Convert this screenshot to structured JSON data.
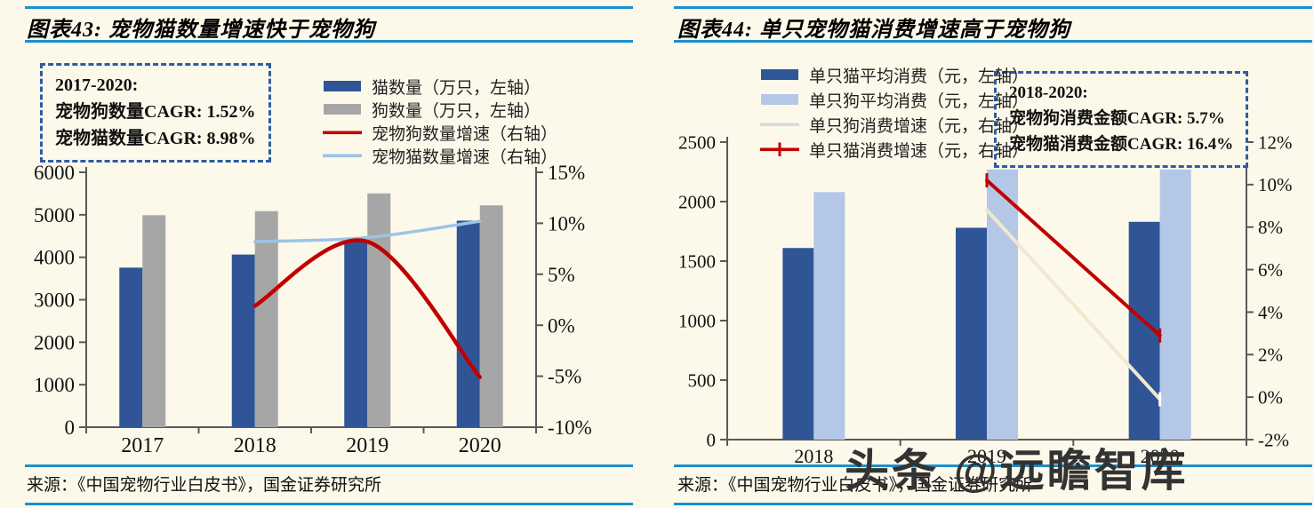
{
  "watermark": {
    "text": "头条 @远瞻智库"
  },
  "colors": {
    "background": "#fdf9ea",
    "rule": "#1b8fcd",
    "box_border": "#2e5ca5",
    "axis": "#595959",
    "ink": "#1a1a1a",
    "watermark": "#333333"
  },
  "panels": [
    {
      "title": "图表43: 宠物猫数量增速快于宠物狗",
      "info_box": {
        "lines": [
          "2017-2020:",
          "宠物狗数量CAGR: 1.52%",
          "宠物猫数量CAGR: 8.98%"
        ]
      },
      "legend": [
        {
          "label": "猫数量（万只，左轴）",
          "swatch": "bar",
          "color": "#2f5597"
        },
        {
          "label": "狗数量（万只，左轴）",
          "swatch": "bar",
          "color": "#a6a6a6"
        },
        {
          "label": "宠物狗数量增速（右轴）",
          "swatch": "line",
          "color": "#c00000"
        },
        {
          "label": "宠物猫数量增速（右轴）",
          "swatch": "line",
          "color": "#9dc3e6"
        }
      ],
      "source": "来源：《中国宠物行业白皮书》，国金证券研究所",
      "chart_data": {
        "type": "bar+line",
        "title": "宠物猫数量增速快于宠物狗",
        "categories": [
          "2017",
          "2018",
          "2019",
          "2020"
        ],
        "series": [
          {
            "name": "猫数量（万只，左轴）",
            "type": "bar",
            "axis": "left",
            "color": "#2f5597",
            "values": [
              3756,
              4064,
              4412,
              4862
            ]
          },
          {
            "name": "狗数量（万只，左轴）",
            "type": "bar",
            "axis": "left",
            "color": "#a6a6a6",
            "values": [
              4990,
              5085,
              5503,
              5222
            ]
          },
          {
            "name": "宠物猫数量增速（右轴）",
            "type": "line",
            "axis": "right",
            "color": "#9dc3e6",
            "smooth": true,
            "width": 3.5,
            "values": [
              null,
              8.2,
              8.6,
              10.2
            ]
          },
          {
            "name": "宠物狗数量增速（右轴）",
            "type": "line",
            "axis": "right",
            "color": "#c00000",
            "smooth": true,
            "width": 4.5,
            "values": [
              null,
              1.9,
              8.2,
              -5.1
            ]
          }
        ],
        "left_axis": {
          "min": 0,
          "max": 6000,
          "ticks": [
            0,
            1000,
            2000,
            3000,
            4000,
            5000,
            6000
          ],
          "labels": [
            "0",
            "1000",
            "2000",
            "3000",
            "4000",
            "5000",
            "6000"
          ]
        },
        "right_axis": {
          "min": -10,
          "max": 15,
          "ticks": [
            -10,
            -5,
            0,
            5,
            10,
            15
          ],
          "labels": [
            "-10%",
            "-5%",
            "0%",
            "5%",
            "10%",
            "15%"
          ]
        },
        "grid": false,
        "legend_position": "top-right"
      }
    },
    {
      "title": "图表44: 单只宠物猫消费增速高于宠物狗",
      "info_box": {
        "lines": [
          "2018-2020:",
          "宠物狗消费金额CAGR: 5.7%",
          "宠物猫消费金额CAGR: 16.4%"
        ]
      },
      "legend": [
        {
          "label": "单只猫平均消费（元，左轴）",
          "swatch": "bar",
          "color": "#2f5597"
        },
        {
          "label": "单只狗平均消费（元，左轴）",
          "swatch": "bar",
          "color": "#b4c7e7"
        },
        {
          "label": "单只狗消费增速（元，右轴）",
          "swatch": "line",
          "color": "#d9d9d9"
        },
        {
          "label": "单只猫消费增速（元，右轴）",
          "swatch": "line-plus",
          "color": "#c00000"
        }
      ],
      "source": "来源：《中国宠物行业白皮书》，国金证券研究所",
      "chart_data": {
        "type": "bar+line",
        "title": "单只宠物猫消费增速高于宠物狗",
        "categories": [
          "2018",
          "2019",
          "2020"
        ],
        "series": [
          {
            "name": "单只猫平均消费（元，左轴）",
            "type": "bar",
            "axis": "left",
            "color": "#2f5597",
            "values": [
              1610,
              1780,
              1830
            ]
          },
          {
            "name": "单只狗平均消费（元，左轴）",
            "type": "bar",
            "axis": "left",
            "color": "#b4c7e7",
            "values": [
              2080,
              2270,
              2270
            ]
          },
          {
            "name": "单只狗消费增速（元，右轴）",
            "type": "line",
            "axis": "right",
            "color": "#f0e8d0",
            "width": 4,
            "marker": "plus-end",
            "marker_color": "#ffffff",
            "values": [
              null,
              8.8,
              -0.1
            ]
          },
          {
            "name": "单只猫消费增速（元，右轴）",
            "type": "line",
            "axis": "right",
            "color": "#c00000",
            "width": 4,
            "marker": "plus",
            "values": [
              null,
              10.2,
              2.9
            ]
          }
        ],
        "left_axis": {
          "min": 0,
          "max": 2500,
          "ticks": [
            0,
            500,
            1000,
            1500,
            2000,
            2500
          ],
          "labels": [
            "0",
            "500",
            "1000",
            "1500",
            "2000",
            "2500"
          ]
        },
        "right_axis": {
          "min": -2,
          "max": 12,
          "ticks": [
            -2,
            0,
            2,
            4,
            6,
            8,
            10,
            12
          ],
          "labels": [
            "-2%",
            "0%",
            "2%",
            "4%",
            "6%",
            "8%",
            "10%",
            "12%"
          ]
        },
        "grid": false,
        "legend_position": "top-left"
      }
    }
  ]
}
